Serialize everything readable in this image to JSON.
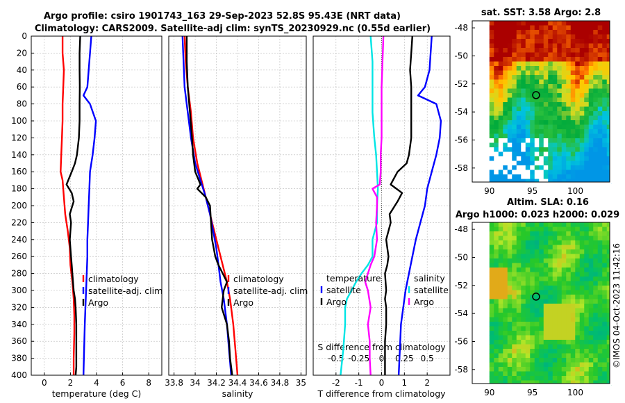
{
  "title_line1": "Argo profile: csiro 1901743_163 29-Sep-2023 52.8S 95.43E (NRT data)",
  "title_line2": "Climatology: CARS2009. Satellite-adj clim: synTS_20230929.nc (0.55d earlier)",
  "watermark": "©IMOS 04-Oct-2023 11:42:16",
  "colors": {
    "climatology": "#ff0000",
    "satellite": "#0000ff",
    "argo": "#000000",
    "cyan": "#00e5e5",
    "magenta": "#ff00ff"
  },
  "chart_data": [
    {
      "type": "line",
      "name": "temperature",
      "xlabel": "temperature (deg C)",
      "xlim": [
        -1,
        9
      ],
      "ylim": [
        0,
        400
      ],
      "xticks": [
        0,
        2,
        4,
        6,
        8
      ],
      "xticklabels": [
        "0",
        "2",
        "4",
        "6",
        "8"
      ],
      "yticks": [
        0,
        20,
        40,
        60,
        80,
        100,
        120,
        140,
        160,
        180,
        200,
        220,
        240,
        260,
        280,
        300,
        320,
        340,
        360,
        380,
        400
      ],
      "legend": [
        "climatology",
        "satellite-adj. clim",
        "Argo"
      ],
      "series": [
        {
          "name": "climatology",
          "color": "#ff0000",
          "x": [
            1.4,
            1.4,
            1.5,
            1.45,
            1.4,
            1.4,
            1.35,
            1.3,
            1.25,
            1.4,
            1.5,
            1.6,
            1.8,
            1.95,
            2.0,
            2.15,
            2.25,
            2.3,
            2.3,
            2.25,
            2.25
          ],
          "y": [
            0,
            20,
            40,
            60,
            80,
            100,
            120,
            140,
            160,
            170,
            190,
            210,
            230,
            250,
            270,
            290,
            310,
            330,
            350,
            380,
            400
          ]
        },
        {
          "name": "satellite-adj. clim",
          "color": "#0000ff",
          "x": [
            3.6,
            3.5,
            3.4,
            3.3,
            3.0,
            3.5,
            3.95,
            3.85,
            3.7,
            3.5,
            3.45,
            3.4,
            3.35,
            3.3,
            3.3,
            3.25,
            3.2,
            3.15,
            3.1,
            3.05,
            3.0
          ],
          "y": [
            0,
            20,
            40,
            60,
            70,
            80,
            100,
            120,
            140,
            160,
            180,
            200,
            220,
            240,
            260,
            280,
            300,
            320,
            340,
            370,
            400
          ]
        },
        {
          "name": "Argo",
          "color": "#000000",
          "x": [
            2.75,
            2.7,
            2.7,
            2.72,
            2.7,
            2.7,
            2.65,
            2.5,
            2.35,
            2.1,
            1.7,
            2.1,
            2.25,
            1.95,
            2.05,
            1.95,
            2.05,
            2.1,
            2.15,
            2.25,
            2.35,
            2.4,
            2.45,
            2.45,
            2.45,
            2.45,
            2.4
          ],
          "y": [
            0,
            20,
            40,
            60,
            80,
            100,
            120,
            140,
            150,
            160,
            175,
            185,
            195,
            210,
            220,
            240,
            260,
            270,
            280,
            300,
            310,
            320,
            340,
            360,
            380,
            390,
            400
          ]
        }
      ]
    },
    {
      "type": "line",
      "name": "salinity",
      "xlabel": "salinity",
      "xlim": [
        33.75,
        35.05
      ],
      "ylim": [
        0,
        400
      ],
      "xticks": [
        33.8,
        34,
        34.2,
        34.4,
        34.6,
        34.8,
        35
      ],
      "xticklabels": [
        "33.8",
        "34",
        "34.2",
        "34.4",
        "34.6",
        "34.8",
        "35"
      ],
      "legend": [
        "climatology",
        "satellite-adj. clim",
        "Argo"
      ],
      "series": [
        {
          "name": "climatology",
          "color": "#ff0000",
          "x": [
            33.9,
            33.91,
            33.93,
            33.96,
            33.98,
            34.02,
            34.06,
            34.1,
            34.14,
            34.18,
            34.22,
            34.26,
            34.3,
            34.33,
            34.36,
            34.38,
            34.4
          ],
          "y": [
            0,
            30,
            60,
            90,
            120,
            150,
            170,
            190,
            210,
            230,
            250,
            270,
            290,
            310,
            340,
            370,
            400
          ]
        },
        {
          "name": "satellite-adj. clim",
          "color": "#0000ff",
          "x": [
            33.88,
            33.89,
            33.9,
            33.93,
            33.96,
            34.0,
            34.05,
            34.1,
            34.14,
            34.17,
            34.2,
            34.22,
            34.24,
            34.27,
            34.3,
            34.32,
            34.34
          ],
          "y": [
            0,
            30,
            60,
            90,
            120,
            150,
            170,
            190,
            210,
            230,
            250,
            270,
            290,
            310,
            340,
            370,
            400
          ]
        },
        {
          "name": "Argo",
          "color": "#000000",
          "x": [
            33.92,
            33.92,
            33.93,
            33.95,
            33.97,
            33.98,
            34.0,
            34.05,
            34.02,
            34.1,
            34.14,
            34.15,
            34.16,
            34.19,
            34.22,
            34.26,
            34.3,
            34.27,
            34.25,
            34.3,
            34.32,
            34.33,
            34.35
          ],
          "y": [
            0,
            30,
            60,
            90,
            120,
            140,
            160,
            175,
            180,
            190,
            200,
            220,
            240,
            260,
            270,
            280,
            290,
            300,
            320,
            340,
            360,
            380,
            400
          ]
        }
      ]
    },
    {
      "type": "line",
      "name": "differences",
      "xlabel": "T difference from climatology",
      "xlabel_top": "S difference from climatology",
      "xlim": [
        -3,
        3
      ],
      "ylim": [
        0,
        400
      ],
      "xticks": [
        -2,
        -1,
        0,
        1,
        2
      ],
      "xticklabels": [
        "-2",
        "-1",
        "0",
        "1",
        "2"
      ],
      "top_ticks": [
        -0.5,
        -0.25,
        0,
        0.25,
        0.5
      ],
      "top_ticklabels": [
        "-0.5",
        "-0.25",
        "0",
        "0.25",
        "0.5"
      ],
      "legend_left_title": "temperature",
      "legend_left": [
        "satellite",
        "Argo"
      ],
      "legend_right_title": "salinity",
      "legend_right": [
        "satellite",
        "Argo"
      ],
      "series": [
        {
          "name": "T satellite",
          "color": "#0000ff",
          "x": [
            2.2,
            2.15,
            2.1,
            1.9,
            1.6,
            2.4,
            2.6,
            2.55,
            2.4,
            2.2,
            2.0,
            1.9,
            1.7,
            1.5,
            1.35,
            1.2,
            1.05,
            0.95,
            0.85,
            0.8,
            0.75
          ],
          "y": [
            0,
            20,
            40,
            60,
            70,
            80,
            100,
            120,
            140,
            160,
            180,
            200,
            220,
            240,
            260,
            280,
            300,
            320,
            340,
            370,
            400
          ]
        },
        {
          "name": "T Argo",
          "color": "#000000",
          "x": [
            1.35,
            1.3,
            1.25,
            1.3,
            1.3,
            1.3,
            1.3,
            1.2,
            1.1,
            0.7,
            0.4,
            0.9,
            0.7,
            0.35,
            0.4,
            0.2,
            0.3,
            0.25,
            0.15,
            0.2,
            0.15,
            0.2,
            0.2,
            0.15,
            0.15,
            0.15,
            0.15
          ],
          "y": [
            0,
            20,
            40,
            60,
            80,
            100,
            120,
            140,
            150,
            160,
            175,
            185,
            195,
            210,
            220,
            240,
            260,
            270,
            280,
            300,
            310,
            320,
            340,
            360,
            380,
            390,
            400
          ]
        },
        {
          "name": "S satellite",
          "color": "#00e5e5",
          "x": [
            -0.12,
            -0.1,
            -0.1,
            -0.1,
            -0.08,
            -0.06,
            -0.05,
            -0.04,
            -0.05,
            -0.05,
            -0.1,
            -0.1,
            -0.15,
            -0.22,
            -0.28,
            -0.33,
            -0.38,
            -0.4,
            -0.4,
            -0.42,
            -0.45
          ],
          "y": [
            0,
            30,
            60,
            90,
            120,
            140,
            160,
            180,
            200,
            220,
            240,
            260,
            270,
            280,
            290,
            300,
            310,
            320,
            340,
            370,
            400
          ]
        },
        {
          "name": "S Argo",
          "color": "#ff00ff",
          "x": [
            0.02,
            0.01,
            0.0,
            0.0,
            0.0,
            -0.01,
            -0.01,
            -0.02,
            -0.1,
            -0.05,
            -0.05,
            -0.06,
            -0.05,
            -0.08,
            -0.12,
            -0.15,
            -0.18,
            -0.15,
            -0.12,
            -0.15,
            -0.13,
            -0.13,
            -0.12
          ],
          "y": [
            0,
            30,
            60,
            90,
            120,
            140,
            160,
            175,
            180,
            190,
            200,
            220,
            240,
            260,
            270,
            280,
            290,
            300,
            320,
            340,
            360,
            380,
            400
          ]
        }
      ]
    },
    {
      "type": "heatmap",
      "name": "sst_map",
      "title": "sat. SST: 3.58 Argo: 2.8",
      "xlim": [
        88,
        104
      ],
      "ylim": [
        -59,
        -47.5
      ],
      "xticks": [
        90,
        95,
        100
      ],
      "xticklabels": [
        "90",
        "95",
        "100"
      ],
      "yticks": [
        -48,
        -50,
        -52,
        -54,
        -56,
        -58
      ],
      "yticklabels": [
        "-48",
        "-50",
        "-52",
        "-54",
        "-56",
        "-58"
      ],
      "marker": {
        "lon": 95.43,
        "lat": -52.8
      }
    },
    {
      "type": "heatmap",
      "name": "sla_map",
      "title": "Altim. SLA: 0.16",
      "subtitle": "Argo h1000: 0.023 h2000: 0.029",
      "xlim": [
        88,
        104
      ],
      "ylim": [
        -59,
        -47.5
      ],
      "xticks": [
        90,
        95,
        100
      ],
      "xticklabels": [
        "90",
        "95",
        "100"
      ],
      "yticks": [
        -48,
        -50,
        -52,
        -54,
        -56,
        -58
      ],
      "yticklabels": [
        "-48",
        "-50",
        "-52",
        "-54",
        "-56",
        "-58"
      ],
      "marker": {
        "lon": 95.43,
        "lat": -52.8
      }
    }
  ]
}
